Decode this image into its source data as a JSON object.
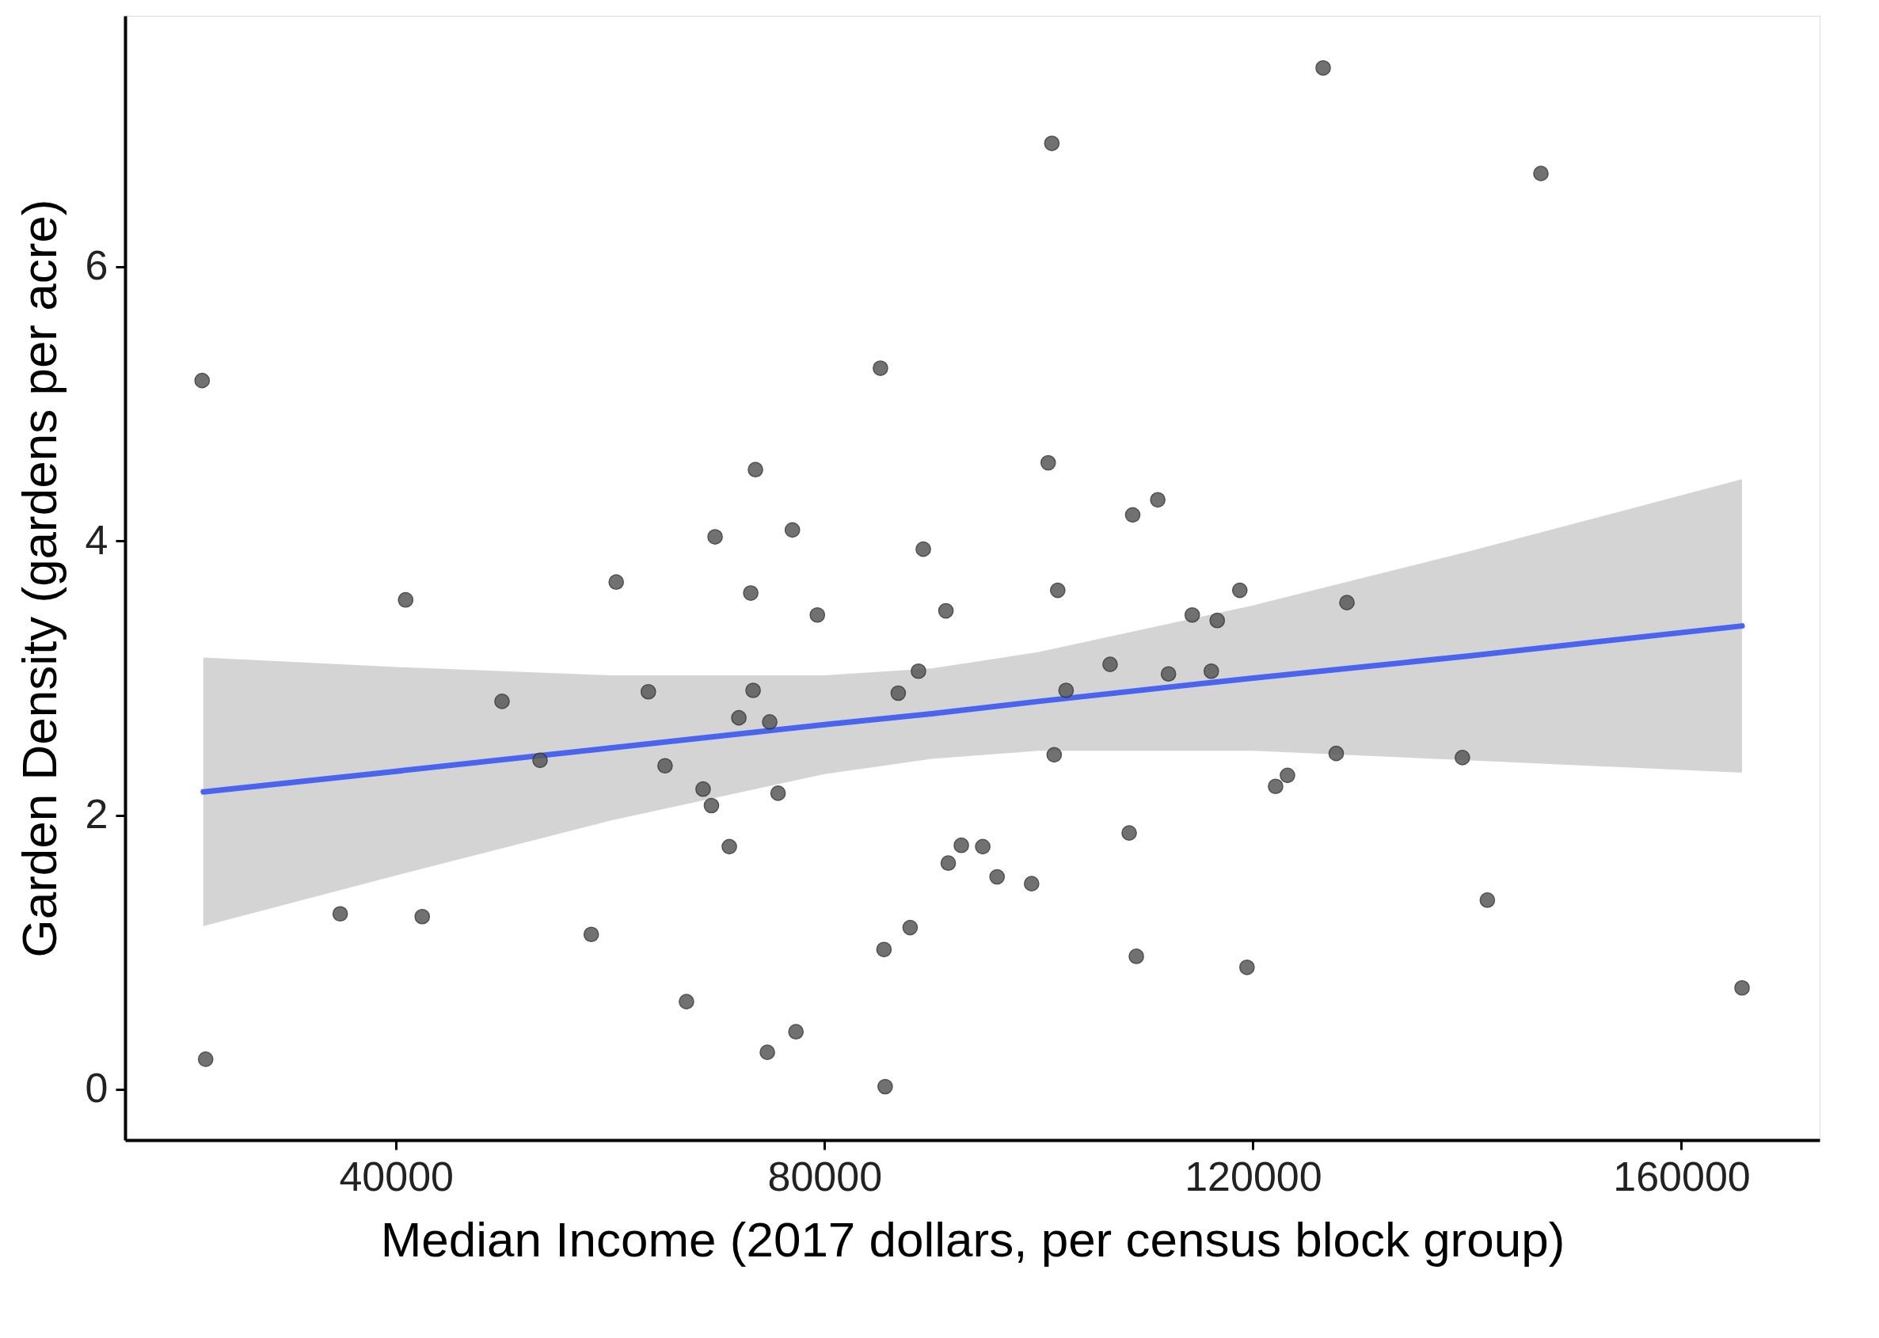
{
  "chart_data": {
    "type": "scatter",
    "xlabel": "Median Income (2017 dollars, per census block group)",
    "ylabel": "Garden Density (gardens per acre)",
    "xlim": [
      14700,
      172900
    ],
    "ylim": [
      -0.37,
      7.83
    ],
    "xticks": [
      40000,
      80000,
      120000,
      160000
    ],
    "yticks": [
      0,
      2,
      4,
      6
    ],
    "grid": false,
    "series": [
      {
        "marker": "circle",
        "color": "#595959",
        "x": [
          21890,
          22220,
          34780,
          40890,
          42440,
          49890,
          53440,
          58220,
          60550,
          63550,
          65110,
          67110,
          68660,
          69440,
          69780,
          71110,
          72000,
          73110,
          73330,
          73550,
          74660,
          74880,
          75660,
          77000,
          77330,
          79330,
          85220,
          85550,
          85660,
          86880,
          87990,
          88770,
          89220,
          91330,
          91550,
          92770,
          94770,
          96110,
          99330,
          100880,
          101220,
          101440,
          101770,
          102550,
          106660,
          108440,
          108770,
          109110,
          111110,
          112110,
          114330,
          116110,
          116660,
          118770,
          119440,
          122110,
          123220,
          126550,
          127770,
          128770,
          139550,
          141880,
          146880,
          165660
        ],
        "values": [
          5.17,
          0.22,
          1.28,
          3.57,
          1.26,
          2.83,
          2.4,
          1.13,
          3.7,
          2.9,
          2.36,
          0.64,
          2.19,
          2.07,
          4.03,
          1.77,
          2.71,
          3.62,
          2.91,
          4.52,
          0.27,
          2.68,
          2.16,
          4.08,
          0.42,
          3.46,
          5.26,
          1.02,
          0.02,
          2.89,
          1.18,
          3.05,
          3.94,
          3.49,
          1.65,
          1.78,
          1.77,
          1.55,
          1.5,
          4.57,
          6.9,
          2.44,
          3.64,
          2.91,
          3.1,
          1.87,
          4.19,
          0.97,
          4.3,
          3.03,
          3.46,
          3.05,
          3.42,
          3.64,
          0.89,
          2.21,
          2.29,
          7.45,
          2.45,
          3.55,
          2.42,
          1.38,
          6.68,
          0.74
        ]
      },
      {
        "type": "line",
        "color": "#4a64f0",
        "x": [
          22000,
          40000,
          60000,
          80000,
          90000,
          100000,
          120000,
          140000,
          165660
        ],
        "values": [
          2.17,
          2.32,
          2.49,
          2.66,
          2.74,
          2.83,
          3.0,
          3.16,
          3.38
        ],
        "lower": [
          1.19,
          1.56,
          1.96,
          2.3,
          2.41,
          2.47,
          2.47,
          2.4,
          2.31
        ],
        "upper": [
          3.15,
          3.08,
          3.02,
          3.02,
          3.07,
          3.19,
          3.53,
          3.92,
          4.45
        ]
      }
    ]
  }
}
